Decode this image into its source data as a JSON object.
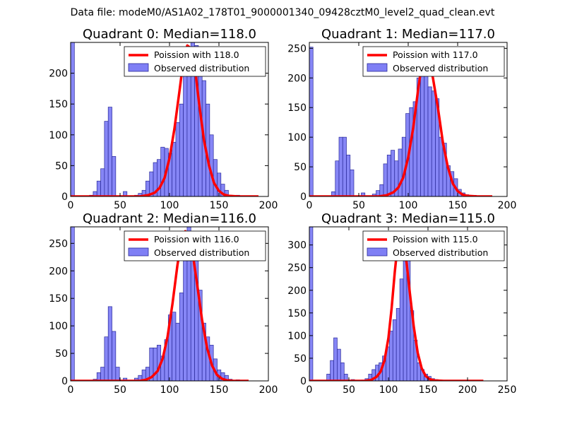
{
  "suptitle": "Data file: modeM0/AS1A02_178T01_9000001340_09428cztM0_level2_quad_clean.evt",
  "colors": {
    "bar_fill": "#7f7ff5",
    "bar_edge": "#2a2a9a",
    "poisson_line": "#ff0000",
    "axes": "#000000"
  },
  "chart_data": [
    {
      "type": "bar",
      "title": "Quadrant 0: Median=118.0",
      "xlim": [
        0,
        200
      ],
      "ylim": [
        0,
        250
      ],
      "xticks": [
        0,
        50,
        100,
        150,
        200
      ],
      "yticks": [
        0,
        50,
        100,
        150,
        200
      ],
      "bin_width": 3.8,
      "legend": [
        "Poission with 118.0",
        "Observed distribution"
      ],
      "histogram": {
        "left_edges": [
          0.0,
          3.8,
          7.6,
          11.4,
          15.2,
          19.0,
          22.8,
          26.6,
          30.4,
          34.2,
          38.0,
          41.8,
          45.6,
          49.4,
          53.2,
          57.0,
          60.8,
          64.6,
          68.4,
          72.2,
          76.0,
          79.8,
          83.6,
          87.4,
          91.2,
          95.0,
          98.8,
          102.6,
          106.4,
          110.2,
          114.0,
          117.8,
          121.6,
          125.4,
          129.2,
          133.0,
          136.8,
          140.6,
          144.4,
          148.2,
          152.0,
          155.8,
          159.6,
          163.4,
          167.2,
          171.0,
          174.8,
          178.6
        ],
        "counts": [
          250,
          0,
          0,
          0,
          0,
          2,
          8,
          25,
          45,
          122,
          145,
          65,
          0,
          0,
          8,
          0,
          0,
          2,
          5,
          10,
          25,
          40,
          55,
          60,
          80,
          78,
          70,
          88,
          120,
          150,
          200,
          235,
          260,
          245,
          212,
          188,
          150,
          100,
          60,
          38,
          20,
          10,
          2,
          0,
          2,
          0,
          1,
          0
        ]
      },
      "poisson": {
        "mean": 118.0,
        "x": [
          0,
          40,
          60,
          70,
          78,
          85,
          90,
          95,
          100,
          105,
          110,
          114,
          118,
          122,
          126,
          130,
          135,
          140,
          145,
          150,
          155,
          160,
          170,
          180,
          190
        ],
        "y": [
          0,
          0,
          0,
          0,
          2,
          6,
          14,
          30,
          62,
          110,
          170,
          220,
          245,
          240,
          205,
          150,
          90,
          50,
          22,
          9,
          3,
          1,
          0,
          0,
          0
        ]
      }
    },
    {
      "type": "bar",
      "title": "Quadrant 1: Median=117.0",
      "xlim": [
        0,
        200
      ],
      "ylim": [
        0,
        260
      ],
      "xticks": [
        0,
        50,
        100,
        150,
        200
      ],
      "yticks": [
        0,
        50,
        100,
        150,
        200,
        250
      ],
      "bin_width": 3.75,
      "legend": [
        "Poission with 117.0",
        "Observed distribution"
      ],
      "histogram": {
        "left_edges": [
          0.0,
          3.75,
          7.5,
          11.25,
          15.0,
          18.75,
          22.5,
          26.25,
          30.0,
          33.75,
          37.5,
          41.25,
          45.0,
          48.75,
          52.5,
          56.25,
          60.0,
          63.75,
          67.5,
          71.25,
          75.0,
          78.75,
          82.5,
          86.25,
          90.0,
          93.75,
          97.5,
          101.25,
          105.0,
          108.75,
          112.5,
          116.25,
          120.0,
          123.75,
          127.5,
          131.25,
          135.0,
          138.75,
          142.5,
          146.25,
          150.0,
          153.75,
          157.5,
          161.25,
          165.0,
          168.75,
          172.5,
          176.25
        ],
        "counts": [
          252,
          0,
          0,
          0,
          0,
          0,
          8,
          60,
          100,
          100,
          70,
          45,
          0,
          0,
          6,
          0,
          0,
          4,
          10,
          20,
          55,
          70,
          78,
          60,
          80,
          100,
          140,
          150,
          160,
          200,
          245,
          240,
          185,
          178,
          165,
          100,
          90,
          52,
          42,
          30,
          12,
          6,
          3,
          0,
          2,
          0,
          0,
          0
        ]
      },
      "poisson": {
        "mean": 117.0,
        "x": [
          0,
          40,
          60,
          70,
          78,
          85,
          90,
          95,
          100,
          105,
          110,
          113,
          117,
          121,
          125,
          130,
          135,
          140,
          145,
          150,
          155,
          160,
          170,
          180,
          185
        ],
        "y": [
          0,
          0,
          0,
          0,
          2,
          7,
          15,
          32,
          66,
          115,
          180,
          215,
          242,
          232,
          200,
          150,
          92,
          50,
          22,
          9,
          3,
          1,
          0,
          0,
          0
        ]
      }
    },
    {
      "type": "bar",
      "title": "Quadrant 2: Median=116.0",
      "xlim": [
        0,
        200
      ],
      "ylim": [
        0,
        280
      ],
      "xticks": [
        0,
        50,
        100,
        150,
        200
      ],
      "yticks": [
        0,
        50,
        100,
        150,
        200,
        250
      ],
      "bin_width": 3.8,
      "legend": [
        "Poission with 116.0",
        "Observed distribution"
      ],
      "histogram": {
        "left_edges": [
          0.0,
          3.8,
          7.6,
          11.4,
          15.2,
          19.0,
          22.8,
          26.6,
          30.4,
          34.2,
          38.0,
          41.8,
          45.6,
          49.4,
          53.2,
          57.0,
          60.8,
          64.6,
          68.4,
          72.2,
          76.0,
          79.8,
          83.6,
          87.4,
          91.2,
          95.0,
          98.8,
          102.6,
          106.4,
          110.2,
          114.0,
          117.8,
          121.6,
          125.4,
          129.2,
          133.0,
          136.8,
          140.6,
          144.4,
          148.2,
          152.0,
          155.8,
          159.6,
          163.4,
          167.2,
          171.0,
          174.8,
          178.6
        ],
        "counts": [
          285,
          0,
          0,
          0,
          0,
          0,
          3,
          15,
          25,
          80,
          135,
          90,
          25,
          0,
          5,
          0,
          0,
          5,
          10,
          20,
          25,
          60,
          60,
          65,
          45,
          75,
          120,
          125,
          105,
          160,
          230,
          285,
          225,
          220,
          165,
          105,
          80,
          65,
          40,
          20,
          15,
          10,
          3,
          0,
          2,
          0,
          0,
          0
        ]
      },
      "poisson": {
        "mean": 116.0,
        "x": [
          0,
          40,
          60,
          70,
          76,
          82,
          88,
          93,
          98,
          103,
          108,
          112,
          116,
          120,
          124,
          128,
          133,
          138,
          143,
          148,
          153,
          158,
          165,
          172,
          180
        ],
        "y": [
          0,
          0,
          0,
          0,
          2,
          7,
          18,
          40,
          80,
          140,
          210,
          255,
          272,
          260,
          225,
          175,
          110,
          60,
          28,
          11,
          4,
          1,
          0,
          0,
          0
        ]
      }
    },
    {
      "type": "bar",
      "title": "Quadrant 3: Median=115.0",
      "xlim": [
        0,
        250
      ],
      "ylim": [
        0,
        340
      ],
      "xticks": [
        0,
        50,
        100,
        150,
        200,
        250
      ],
      "yticks": [
        0,
        50,
        100,
        150,
        200,
        250,
        300
      ],
      "bin_width": 4.4,
      "legend": [
        "Poission with 115.0",
        "Observed distribution"
      ],
      "histogram": {
        "left_edges": [
          0.0,
          4.4,
          8.8,
          13.2,
          17.6,
          22.0,
          26.4,
          30.8,
          35.2,
          39.6,
          44.0,
          48.4,
          52.8,
          57.2,
          61.6,
          66.0,
          70.4,
          74.8,
          79.2,
          83.6,
          88.0,
          92.4,
          96.8,
          101.2,
          105.6,
          110.0,
          114.4,
          118.8,
          123.2,
          127.6,
          132.0,
          136.4,
          140.8,
          145.2,
          149.6,
          154.0,
          158.4,
          162.8,
          167.2,
          171.6,
          176.0,
          180.4,
          184.8,
          189.2,
          193.6,
          198.0,
          202.4,
          206.8
        ],
        "counts": [
          340,
          0,
          0,
          0,
          0,
          15,
          45,
          95,
          70,
          40,
          15,
          0,
          3,
          0,
          0,
          2,
          5,
          15,
          25,
          35,
          40,
          55,
          75,
          110,
          135,
          160,
          225,
          300,
          285,
          155,
          90,
          40,
          25,
          15,
          10,
          5,
          3,
          2,
          1,
          0,
          0,
          0,
          0,
          0,
          0,
          0,
          0,
          0
        ]
      },
      "poisson": {
        "mean": 115.0,
        "x": [
          0,
          40,
          60,
          70,
          78,
          85,
          90,
          95,
          100,
          104,
          108,
          111,
          115,
          119,
          123,
          127,
          132,
          137,
          142,
          147,
          152,
          158,
          170,
          190,
          220
        ],
        "y": [
          0,
          0,
          0,
          0,
          2,
          9,
          20,
          45,
          95,
          160,
          240,
          290,
          318,
          305,
          260,
          195,
          120,
          62,
          28,
          11,
          4,
          1,
          0,
          0,
          0
        ]
      }
    }
  ]
}
